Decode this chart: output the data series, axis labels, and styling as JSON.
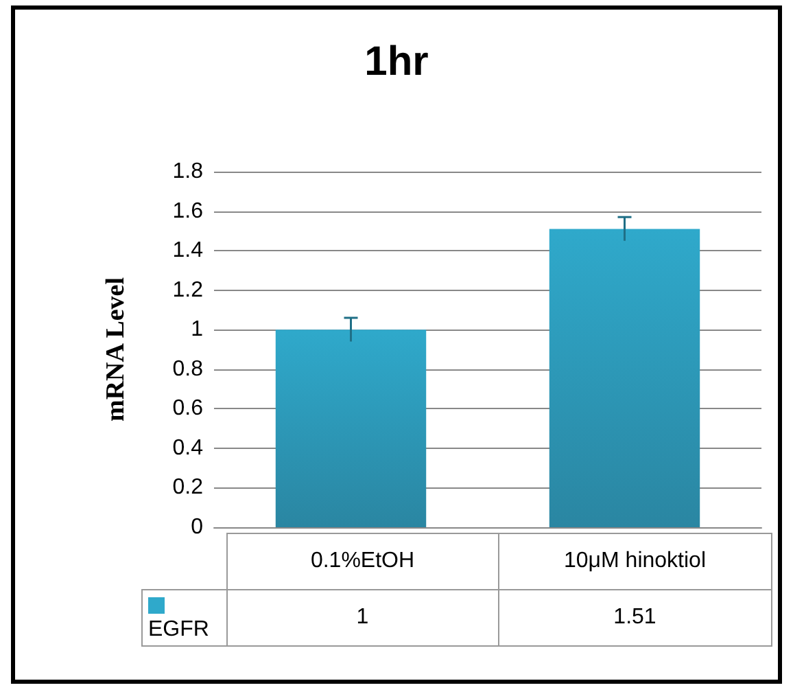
{
  "chart_data": {
    "type": "bar",
    "title": "1hr",
    "ylabel": "mRNA Level",
    "categories": [
      "0.1%EtOH",
      "10μM hinoktiol"
    ],
    "series": [
      {
        "name": "EGFR",
        "color": "#2fa9cb",
        "values": [
          1,
          1.51
        ],
        "errors": [
          0.06,
          0.06
        ]
      }
    ],
    "ylim": [
      0,
      1.8
    ],
    "yticks": [
      0,
      0.2,
      0.4,
      0.6,
      0.8,
      1,
      1.2,
      1.4,
      1.6,
      1.8
    ],
    "grid": "y",
    "legend": "bottom",
    "data_labels": true
  }
}
